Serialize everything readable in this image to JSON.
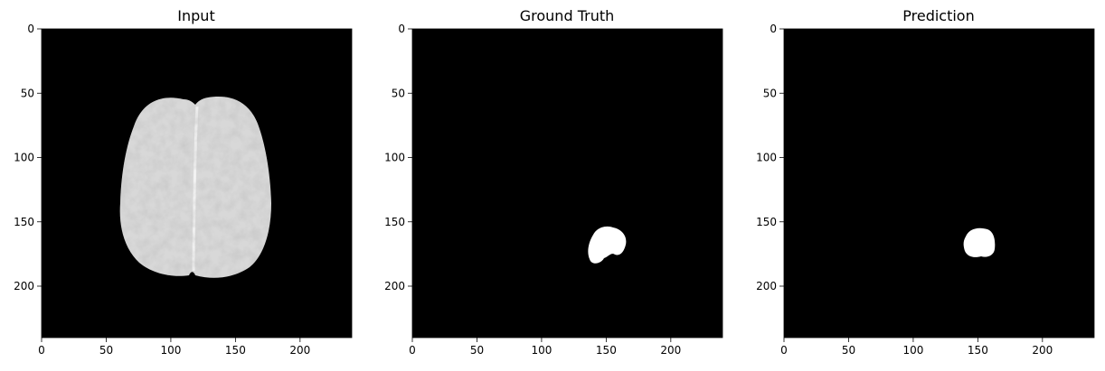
{
  "figure": {
    "panels": [
      {
        "title": "Input",
        "kind": "mri-slice"
      },
      {
        "title": "Ground Truth",
        "kind": "segmentation-mask"
      },
      {
        "title": "Prediction",
        "kind": "segmentation-mask"
      }
    ],
    "axes": {
      "x_ticks": [
        "0",
        "50",
        "100",
        "150",
        "200"
      ],
      "y_ticks": [
        "0",
        "50",
        "100",
        "150",
        "200"
      ],
      "extent": [
        0,
        240
      ]
    },
    "colors": {
      "background": "#ffffff",
      "image_bg": "#000000",
      "mask": "#ffffff"
    }
  }
}
